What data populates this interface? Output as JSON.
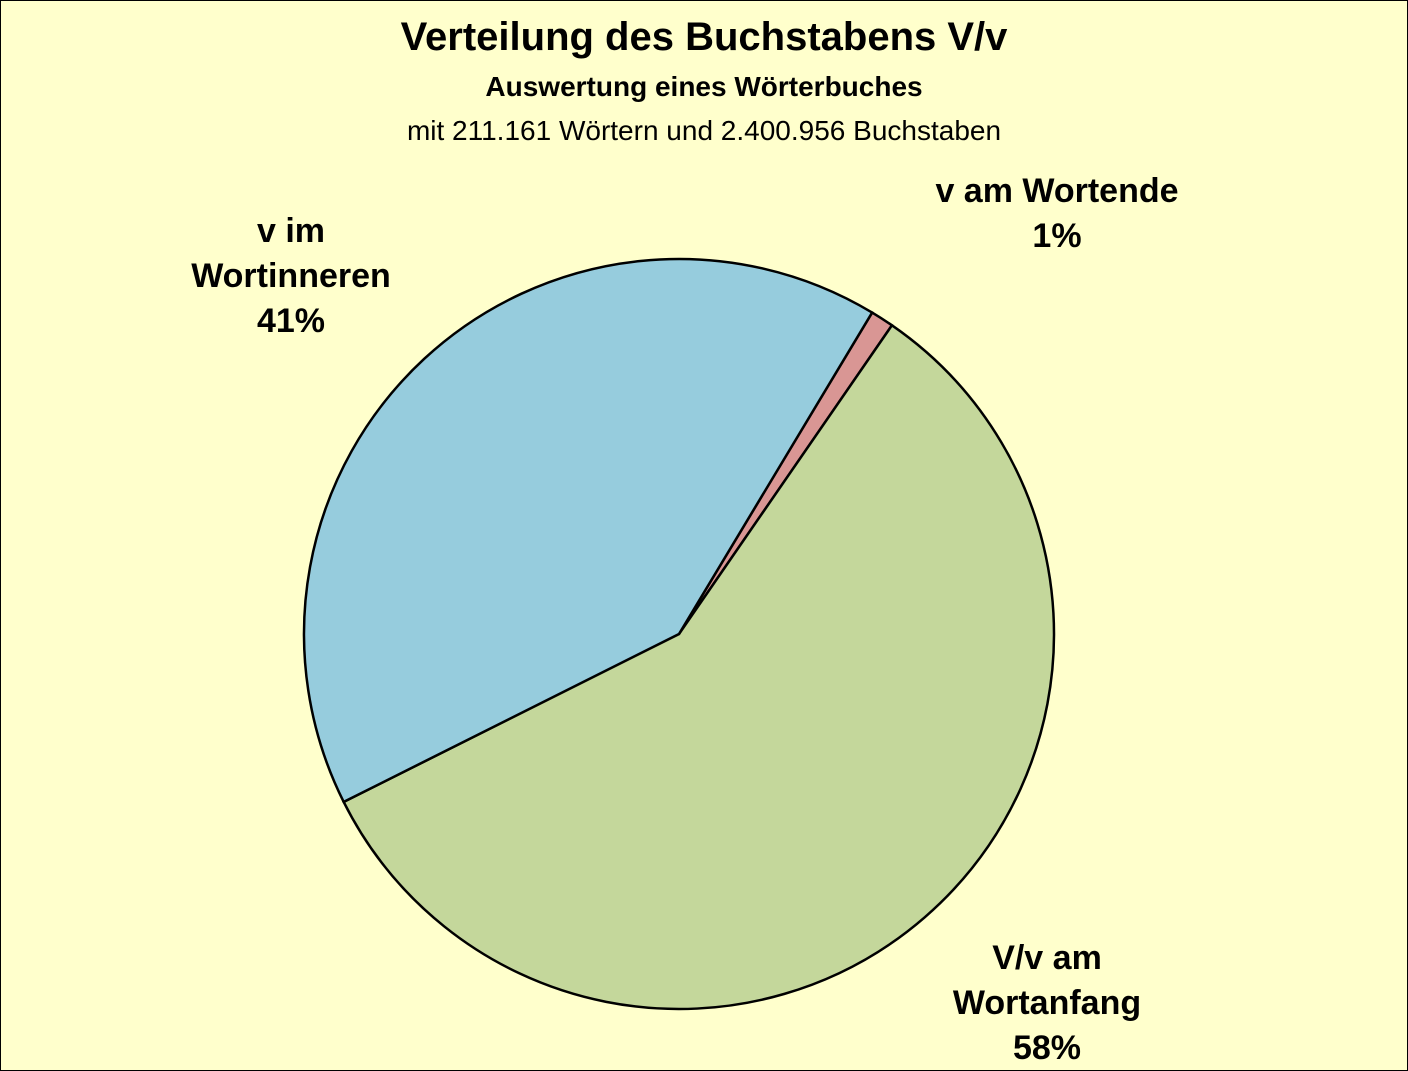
{
  "chart_data": {
    "type": "pie",
    "title": "Verteilung des Buchstabens V/v",
    "subtitle": "Auswertung eines Wörterbuches",
    "note": "mit 211.161 Wörtern und 2.400.956 Buchstaben",
    "categories": [
      "v am Wortende",
      "V/v am Wortanfang",
      "v im Wortinneren"
    ],
    "values": [
      1,
      58,
      41
    ],
    "value_labels": [
      "1%",
      "58%",
      "41%"
    ],
    "colors": [
      "#d99694",
      "#c4d79b",
      "#96ccdd"
    ]
  }
}
